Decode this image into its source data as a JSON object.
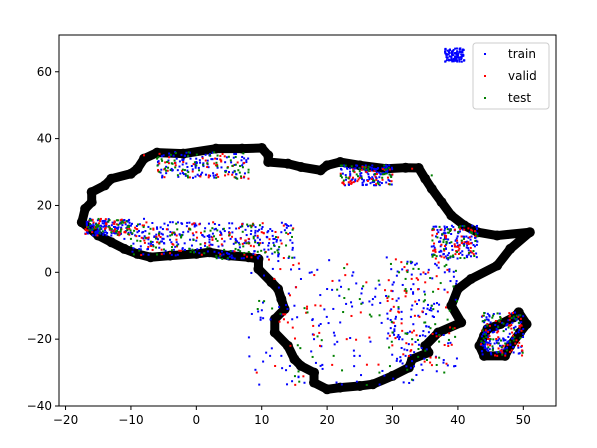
{
  "chart_data": {
    "type": "scatter",
    "title": "",
    "xlabel": "",
    "ylabel": "",
    "xlim": [
      -21,
      55
    ],
    "ylim": [
      -40,
      71
    ],
    "x_ticks": [
      -20,
      -10,
      0,
      10,
      20,
      30,
      40,
      50
    ],
    "y_ticks": [
      -40,
      -20,
      0,
      20,
      40,
      60
    ],
    "x_tick_labels": [
      "−20",
      "−10",
      "0",
      "10",
      "20",
      "30",
      "40",
      "50"
    ],
    "y_tick_labels": [
      "−40",
      "−20",
      "0",
      "20",
      "40",
      "60"
    ],
    "grid": false,
    "legend_position": "top-right",
    "outline": {
      "color": "#000000",
      "points": [
        [
          -17.5,
          15
        ],
        [
          -17,
          19
        ],
        [
          -16,
          21
        ],
        [
          -16,
          24
        ],
        [
          -14,
          26
        ],
        [
          -13,
          28
        ],
        [
          -10,
          29.5
        ],
        [
          -9,
          31
        ],
        [
          -8,
          34
        ],
        [
          -6,
          35.8
        ],
        [
          -2,
          35.5
        ],
        [
          3,
          37
        ],
        [
          7,
          37
        ],
        [
          10,
          37.2
        ],
        [
          11,
          35
        ],
        [
          11,
          33
        ],
        [
          14,
          32.5
        ],
        [
          16,
          31.5
        ],
        [
          19,
          30.5
        ],
        [
          20,
          32
        ],
        [
          22,
          33
        ],
        [
          25,
          32
        ],
        [
          29,
          31
        ],
        [
          32,
          31.3
        ],
        [
          34,
          31.2
        ],
        [
          35,
          28
        ],
        [
          36,
          25
        ],
        [
          37.5,
          21
        ],
        [
          39,
          17
        ],
        [
          41,
          14
        ],
        [
          43,
          12
        ],
        [
          46,
          11
        ],
        [
          51,
          12
        ],
        [
          48,
          7
        ],
        [
          46,
          2
        ],
        [
          42,
          -2
        ],
        [
          40,
          -5
        ],
        [
          39,
          -10
        ],
        [
          40.5,
          -15
        ],
        [
          37,
          -18
        ],
        [
          35,
          -22
        ],
        [
          35.5,
          -24
        ],
        [
          33,
          -26
        ],
        [
          32.5,
          -28.5
        ],
        [
          30,
          -31
        ],
        [
          27,
          -33.5
        ],
        [
          25,
          -34
        ],
        [
          22,
          -34.5
        ],
        [
          20,
          -35
        ],
        [
          18,
          -33
        ],
        [
          18,
          -30
        ],
        [
          16,
          -28
        ],
        [
          15,
          -26
        ],
        [
          14,
          -22
        ],
        [
          12,
          -18
        ],
        [
          12,
          -14
        ],
        [
          13.5,
          -11
        ],
        [
          13,
          -8
        ],
        [
          12.5,
          -5
        ],
        [
          11.5,
          -3
        ],
        [
          9.5,
          1
        ],
        [
          9.5,
          4
        ],
        [
          8,
          4.5
        ],
        [
          5,
          5
        ],
        [
          2,
          6
        ],
        [
          0,
          5.5
        ],
        [
          -4,
          5
        ],
        [
          -7,
          4.5
        ],
        [
          -9,
          5.5
        ],
        [
          -11,
          7
        ],
        [
          -13,
          9
        ],
        [
          -15,
          11
        ],
        [
          -17.5,
          15
        ]
      ]
    },
    "madagascar": {
      "color": "#000000",
      "points": [
        [
          49.3,
          -12
        ],
        [
          50.5,
          -15.5
        ],
        [
          49.5,
          -18
        ],
        [
          48,
          -22
        ],
        [
          47.2,
          -25
        ],
        [
          44,
          -25
        ],
        [
          43.3,
          -22
        ],
        [
          44,
          -19
        ],
        [
          44.5,
          -17
        ],
        [
          46.5,
          -15.5
        ],
        [
          48.5,
          -13.5
        ],
        [
          49.3,
          -12
        ]
      ]
    },
    "series": [
      {
        "name": "train",
        "color": "#0000ff",
        "regions": [
          [
            -17,
            -10,
            11,
            16
          ],
          [
            -10,
            3,
            5,
            15
          ],
          [
            3,
            15,
            4,
            15
          ],
          [
            -6,
            8,
            28,
            36
          ],
          [
            22,
            30,
            26,
            32
          ],
          [
            36,
            43,
            4,
            14
          ],
          [
            8,
            34,
            -34,
            4
          ],
          [
            29,
            40,
            -30,
            5
          ],
          [
            43.5,
            50,
            -25,
            -12
          ],
          [
            38,
            41,
            63,
            67
          ]
        ],
        "values": [
          [
            -16,
            14
          ],
          [
            -15,
            12
          ],
          [
            -14,
            15
          ],
          [
            -13,
            11
          ],
          [
            -12,
            13
          ],
          [
            -11,
            10
          ],
          [
            -10,
            14
          ],
          [
            -9,
            12
          ],
          [
            -8,
            16
          ],
          [
            -7,
            8
          ],
          [
            -6,
            13
          ],
          [
            -5,
            10
          ],
          [
            -4,
            15
          ],
          [
            -3,
            9
          ],
          [
            -2,
            12
          ],
          [
            -1,
            7
          ],
          [
            0,
            14
          ],
          [
            1,
            11
          ],
          [
            2,
            9
          ],
          [
            3,
            13
          ],
          [
            4,
            8
          ],
          [
            5,
            12
          ],
          [
            6,
            10
          ],
          [
            7,
            14
          ],
          [
            8,
            9
          ],
          [
            9,
            11
          ],
          [
            10,
            13
          ],
          [
            11,
            8
          ],
          [
            12,
            10
          ],
          [
            13,
            12
          ],
          [
            -5,
            35
          ],
          [
            -3,
            34
          ],
          [
            0,
            33
          ],
          [
            2,
            35
          ],
          [
            5,
            30
          ],
          [
            7,
            32
          ],
          [
            24,
            31
          ],
          [
            27,
            28
          ],
          [
            29,
            30
          ],
          [
            38,
            10
          ],
          [
            40,
            8
          ],
          [
            37,
            12
          ],
          [
            42,
            6
          ],
          [
            15,
            -10
          ],
          [
            18,
            -20
          ],
          [
            20,
            -5
          ],
          [
            22,
            -15
          ],
          [
            24,
            0
          ],
          [
            25,
            -25
          ],
          [
            27,
            -8
          ],
          [
            19,
            -28
          ],
          [
            16,
            -2
          ],
          [
            13,
            -25
          ],
          [
            30,
            -15
          ],
          [
            32,
            -25
          ],
          [
            34,
            -5
          ],
          [
            36,
            -10
          ],
          [
            31,
            -20
          ],
          [
            38,
            0
          ],
          [
            33,
            3
          ],
          [
            45,
            -15
          ],
          [
            47,
            -20
          ],
          [
            46,
            -24
          ],
          [
            49,
            -14
          ],
          [
            44,
            -18
          ],
          [
            39.5,
            65.5
          ]
        ]
      },
      {
        "name": "valid",
        "color": "#ff0000",
        "regions": [
          [
            -17,
            -10,
            11,
            16
          ],
          [
            -10,
            3,
            5,
            15
          ],
          [
            3,
            15,
            4,
            15
          ],
          [
            -6,
            8,
            28,
            36
          ],
          [
            22,
            30,
            26,
            32
          ],
          [
            36,
            43,
            4,
            14
          ],
          [
            8,
            34,
            -34,
            4
          ],
          [
            29,
            40,
            -30,
            5
          ],
          [
            43.5,
            50,
            -25,
            -12
          ]
        ],
        "values": [
          [
            -14,
            13
          ],
          [
            -11,
            12
          ],
          [
            -8,
            14
          ],
          [
            -6,
            9
          ],
          [
            -3,
            11
          ],
          [
            0,
            12
          ],
          [
            2,
            8
          ],
          [
            5,
            11
          ],
          [
            8,
            10
          ],
          [
            10,
            12
          ],
          [
            -8,
            35
          ],
          [
            -2,
            33
          ],
          [
            3,
            32
          ],
          [
            26,
            30
          ],
          [
            33,
            31
          ],
          [
            38,
            11
          ],
          [
            41,
            9
          ],
          [
            14,
            -15
          ],
          [
            19,
            -10
          ],
          [
            23,
            -20
          ],
          [
            26,
            -3
          ],
          [
            30,
            -8
          ],
          [
            33,
            -18
          ],
          [
            35,
            -3
          ],
          [
            31,
            -12
          ],
          [
            37,
            -5
          ],
          [
            46,
            -18
          ],
          [
            48,
            -16
          ],
          [
            47,
            -22
          ]
        ]
      },
      {
        "name": "test",
        "color": "#008000",
        "regions": [
          [
            -17,
            -10,
            11,
            16
          ],
          [
            -10,
            3,
            5,
            15
          ],
          [
            3,
            15,
            4,
            15
          ],
          [
            -6,
            8,
            28,
            36
          ],
          [
            22,
            30,
            26,
            32
          ],
          [
            36,
            43,
            4,
            14
          ],
          [
            8,
            34,
            -34,
            4
          ],
          [
            29,
            40,
            -30,
            5
          ],
          [
            43.5,
            50,
            -25,
            -12
          ]
        ],
        "values": [
          [
            -15,
            14
          ],
          [
            -13,
            12
          ],
          [
            -10,
            10
          ],
          [
            -7,
            13
          ],
          [
            -4,
            11
          ],
          [
            -1,
            13
          ],
          [
            3,
            10
          ],
          [
            6,
            7
          ],
          [
            9,
            9
          ],
          [
            12,
            6
          ],
          [
            -6,
            34
          ],
          [
            0,
            32
          ],
          [
            25,
            31
          ],
          [
            36,
            29
          ],
          [
            39,
            9
          ],
          [
            42,
            12
          ],
          [
            17,
            -12
          ],
          [
            21,
            -25
          ],
          [
            25,
            -8
          ],
          [
            28,
            -30
          ],
          [
            31,
            0
          ],
          [
            32,
            -5
          ],
          [
            33,
            -20
          ],
          [
            35,
            -15
          ],
          [
            36,
            -10
          ],
          [
            34,
            1
          ],
          [
            30,
            -18
          ],
          [
            45,
            -20
          ],
          [
            49,
            -13
          ]
        ]
      }
    ]
  }
}
